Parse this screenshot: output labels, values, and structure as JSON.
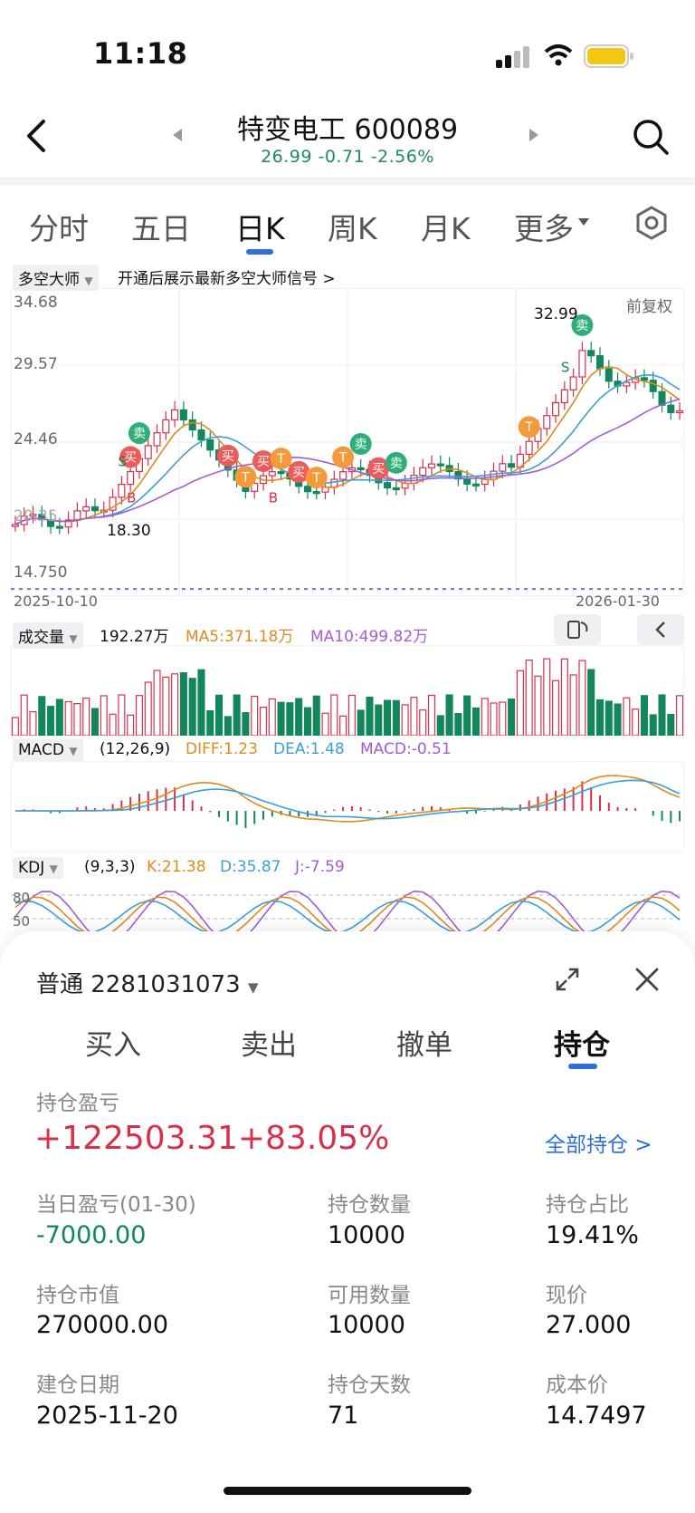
{
  "status_bar": {
    "time": "11:18"
  },
  "header": {
    "stock_name_code": "特变电工 600089",
    "quote": "26.99 -0.71 -2.56%"
  },
  "tabs": [
    {
      "label": "分时"
    },
    {
      "label": "五日"
    },
    {
      "label": "日K"
    },
    {
      "label": "周K"
    },
    {
      "label": "月K"
    },
    {
      "label": "更多"
    }
  ],
  "signal_bar": {
    "selector": "多空大师",
    "promo": "开通后展示最新多空大师信号 >"
  },
  "price_chart": {
    "adjust_label": "前复权",
    "y_ticks": [
      "34.68",
      "29.57",
      "24.46",
      "14.750"
    ],
    "extra_tick": "20.35",
    "high_label": "32.99",
    "low_label": "18.30",
    "start_date": "2025-10-10",
    "end_date": "2026-01-30",
    "markers": [
      {
        "text": "卖",
        "kind": "sell"
      },
      {
        "text": "买",
        "kind": "buy"
      },
      {
        "text": "T",
        "kind": "t"
      },
      {
        "text": "S",
        "kind": "s"
      },
      {
        "text": "B",
        "kind": "b"
      }
    ]
  },
  "volume": {
    "label": "成交量",
    "value": "192.27万",
    "ma5": "MA5:371.18万",
    "ma10": "MA10:499.82万"
  },
  "macd": {
    "label": "MACD",
    "params": "(12,26,9)",
    "diff": "DIFF:1.23",
    "dea": "DEA:1.48",
    "macd": "MACD:-0.51"
  },
  "kdj": {
    "label": "KDJ",
    "params": "(9,3,3)",
    "k": "K:21.38",
    "d": "D:35.87",
    "j": "J:-7.59",
    "t80": "80",
    "t50": "50"
  },
  "panel": {
    "account": "普通 2281031073",
    "trade_tabs": [
      "买入",
      "卖出",
      "撤单",
      "持仓"
    ],
    "pnl_label": "持仓盈亏",
    "pnl_value": "+122503.31+83.05%",
    "all_positions": "全部持仓 >",
    "fields": [
      {
        "k": "当日盈亏(01-30)",
        "v": "-7000.00"
      },
      {
        "k": "持仓数量",
        "v": "10000"
      },
      {
        "k": "持仓占比",
        "v": "19.41%"
      },
      {
        "k": "持仓市值",
        "v": "270000.00"
      },
      {
        "k": "可用数量",
        "v": "10000"
      },
      {
        "k": "现价",
        "v": "27.000"
      },
      {
        "k": "建仓日期",
        "v": "2025-11-20"
      },
      {
        "k": "持仓天数",
        "v": "71"
      },
      {
        "k": "成本价",
        "v": "14.7497"
      }
    ]
  },
  "colors": {
    "up": "#d9304a",
    "down": "#12875b",
    "ma5": "#e08a1e",
    "ma10": "#a35cd6",
    "ma20": "#3a9fd6",
    "accent": "#2f6fdc"
  }
}
